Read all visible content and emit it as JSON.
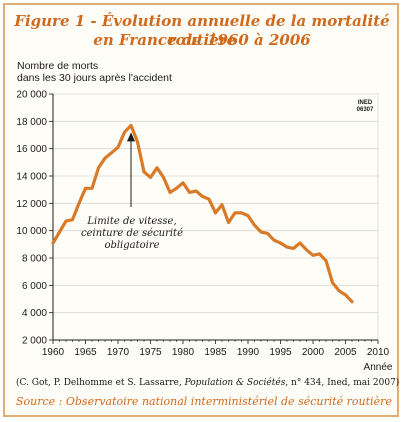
{
  "figure": {
    "title_line1": "Figure 1 - Évolution annuelle de la mortalité routière",
    "title_line2": "en France de 1960 à 2006",
    "ylabel_line1": "Nombre de morts",
    "ylabel_line2": "dans les 30 jours après l'accident",
    "badge_line1": "INED",
    "badge_line2": "06307",
    "citation_before": "(C. Got, P. Delhomme et S. Lassarre, ",
    "citation_journal": "Population & Sociétés",
    "citation_after": ", n° 434, Ined, mai 2007)",
    "source": "Source : Observatoire national interministériel de sécurité routière",
    "annotation": [
      "Limite de vitesse,",
      "ceinture de sécurité",
      "obligatoire"
    ]
  },
  "colors": {
    "line": "#d87a28",
    "title": "#d0691c",
    "border": "#e0ad77",
    "grid": "#d8d8d8"
  },
  "chart_data": {
    "type": "line",
    "xlabel": "Année",
    "ylabel": "Nombre de morts dans les 30 jours après l'accident",
    "xlim": [
      1960,
      2010
    ],
    "ylim": [
      2000,
      20000
    ],
    "x_ticks": [
      1960,
      1965,
      1970,
      1975,
      1980,
      1985,
      1990,
      1995,
      2000,
      2005,
      2010
    ],
    "y_ticks": [
      2000,
      4000,
      6000,
      8000,
      10000,
      12000,
      14000,
      16000,
      18000,
      20000
    ],
    "y_tick_labels": [
      "2 000",
      "4 000",
      "6 000",
      "8 000",
      "10 000",
      "12 000",
      "14 000",
      "16 000",
      "18 000",
      "20 000"
    ],
    "grid": true,
    "annotation_x": 1972,
    "x": [
      1960,
      1961,
      1962,
      1963,
      1964,
      1965,
      1966,
      1967,
      1968,
      1969,
      1970,
      1971,
      1972,
      1973,
      1974,
      1975,
      1976,
      1977,
      1978,
      1979,
      1980,
      1981,
      1982,
      1983,
      1984,
      1985,
      1986,
      1987,
      1988,
      1989,
      1990,
      1991,
      1992,
      1993,
      1994,
      1995,
      1996,
      1997,
      1998,
      1999,
      2000,
      2001,
      2002,
      2003,
      2004,
      2005,
      2006
    ],
    "y": [
      9100,
      9900,
      10700,
      10800,
      12000,
      13100,
      13100,
      14600,
      15300,
      15700,
      16100,
      17200,
      17700,
      16500,
      14300,
      13900,
      14600,
      13900,
      12800,
      13100,
      13500,
      12800,
      12900,
      12500,
      12300,
      11300,
      11900,
      10600,
      11300,
      11300,
      11100,
      10400,
      9900,
      9800,
      9300,
      9100,
      8800,
      8700,
      9100,
      8600,
      8200,
      8300,
      7800,
      6200,
      5600,
      5300,
      4800
    ]
  }
}
